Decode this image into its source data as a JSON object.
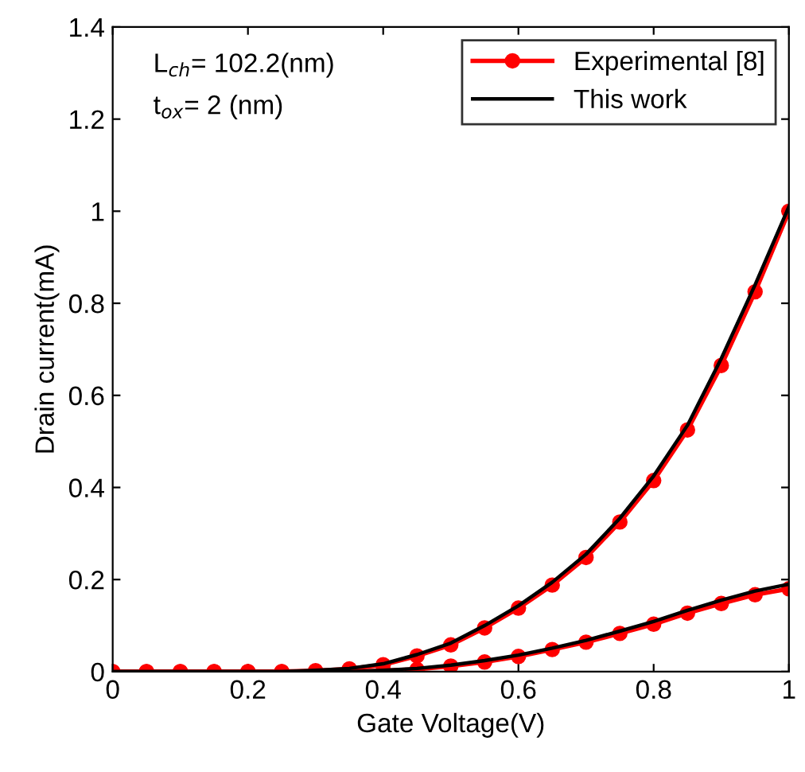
{
  "chart_data": {
    "type": "line",
    "xlabel": "Gate Voltage(V)",
    "ylabel": "Drain current(mA)",
    "annotations": [
      "L$_{ch}$= 102.2(nm)",
      "t$_{ox}$= 2 (nm)"
    ],
    "x": [
      0,
      0.05,
      0.1,
      0.15,
      0.2,
      0.25,
      0.3,
      0.35,
      0.4,
      0.45,
      0.5,
      0.55,
      0.6,
      0.65,
      0.7,
      0.75,
      0.8,
      0.85,
      0.9,
      0.95,
      1.0
    ],
    "series": [
      {
        "name": "Experimental [8]",
        "color": "#ff0000",
        "marker": "circle",
        "values": [
          0,
          0,
          0,
          0,
          0,
          0,
          0.002,
          0.006,
          0.015,
          0.034,
          0.058,
          0.095,
          0.138,
          0.188,
          0.248,
          0.325,
          0.415,
          0.525,
          0.665,
          0.825,
          1.0
        ]
      },
      {
        "color": "#ff0000",
        "marker": "circle",
        "values": [
          0,
          0,
          0,
          0,
          0,
          0,
          0,
          0,
          0.002,
          0.005,
          0.012,
          0.021,
          0.033,
          0.048,
          0.064,
          0.083,
          0.103,
          0.127,
          0.148,
          0.167,
          0.18
        ]
      },
      {
        "name": "This work",
        "color": "#000000",
        "marker": "none",
        "values": [
          0,
          0,
          0,
          0,
          0,
          0,
          0.003,
          0.007,
          0.017,
          0.037,
          0.062,
          0.1,
          0.143,
          0.194,
          0.255,
          0.333,
          0.425,
          0.535,
          0.68,
          0.84,
          1.01
        ]
      },
      {
        "color": "#000000",
        "marker": "none",
        "values": [
          0,
          0,
          0,
          0,
          0,
          0,
          0,
          0,
          0.003,
          0.007,
          0.014,
          0.024,
          0.036,
          0.051,
          0.068,
          0.088,
          0.109,
          0.133,
          0.155,
          0.175,
          0.19
        ]
      }
    ],
    "xlim": [
      0,
      1
    ],
    "ylim": [
      0,
      1.4
    ],
    "xticks": [
      0,
      0.2,
      0.4,
      0.6,
      0.8,
      1
    ],
    "yticks": [
      0,
      0.2,
      0.4,
      0.6,
      0.8,
      1,
      1.2,
      1.4
    ],
    "grid": false,
    "legend": "top right"
  }
}
